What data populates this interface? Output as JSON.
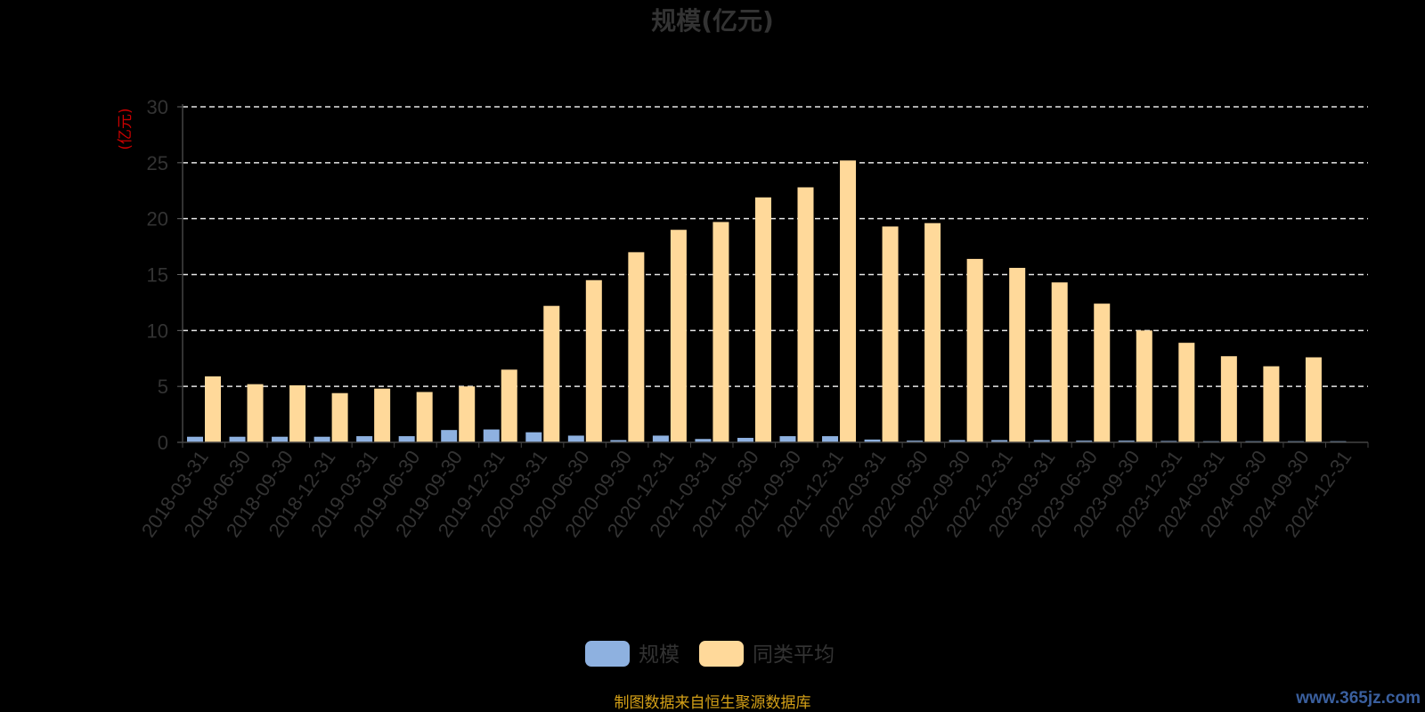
{
  "chart_data": {
    "type": "bar",
    "title": "规模(亿元)",
    "ylabel": "(亿元)",
    "ylim": [
      0,
      30
    ],
    "yticks": [
      0,
      5,
      10,
      15,
      20,
      25,
      30
    ],
    "grid": true,
    "legend_position": "bottom-center",
    "categories": [
      "2018-03-31",
      "2018-06-30",
      "2018-09-30",
      "2018-12-31",
      "2019-03-31",
      "2019-06-30",
      "2019-09-30",
      "2019-12-31",
      "2020-03-31",
      "2020-06-30",
      "2020-09-30",
      "2020-12-31",
      "2021-03-31",
      "2021-06-30",
      "2021-09-30",
      "2021-12-31",
      "2022-03-31",
      "2022-06-30",
      "2022-09-30",
      "2022-12-31",
      "2023-03-31",
      "2023-06-30",
      "2023-09-30",
      "2023-12-31",
      "2024-03-31",
      "2024-06-30",
      "2024-09-30",
      "2024-12-31"
    ],
    "series": [
      {
        "name": "规模",
        "color": "#8eb1e0",
        "values": [
          0.5,
          0.5,
          0.5,
          0.5,
          0.55,
          0.55,
          1.1,
          1.15,
          0.9,
          0.6,
          0.2,
          0.6,
          0.3,
          0.4,
          0.55,
          0.55,
          0.25,
          0.15,
          0.2,
          0.2,
          0.2,
          0.15,
          0.15,
          0.12,
          0.1,
          0.1,
          0.1,
          0.1
        ]
      },
      {
        "name": "同类平均",
        "color": "#ffd99a",
        "values": [
          5.9,
          5.2,
          5.1,
          4.4,
          4.8,
          4.5,
          5.0,
          6.5,
          12.2,
          14.5,
          17.0,
          19.0,
          19.7,
          21.9,
          22.8,
          25.2,
          19.3,
          19.6,
          16.4,
          15.6,
          14.3,
          12.4,
          10.0,
          8.9,
          7.7,
          6.8,
          7.6,
          null
        ]
      }
    ]
  },
  "footer": {
    "source": "制图数据来自恒生聚源数据库",
    "watermark": "www.365jz.com"
  }
}
